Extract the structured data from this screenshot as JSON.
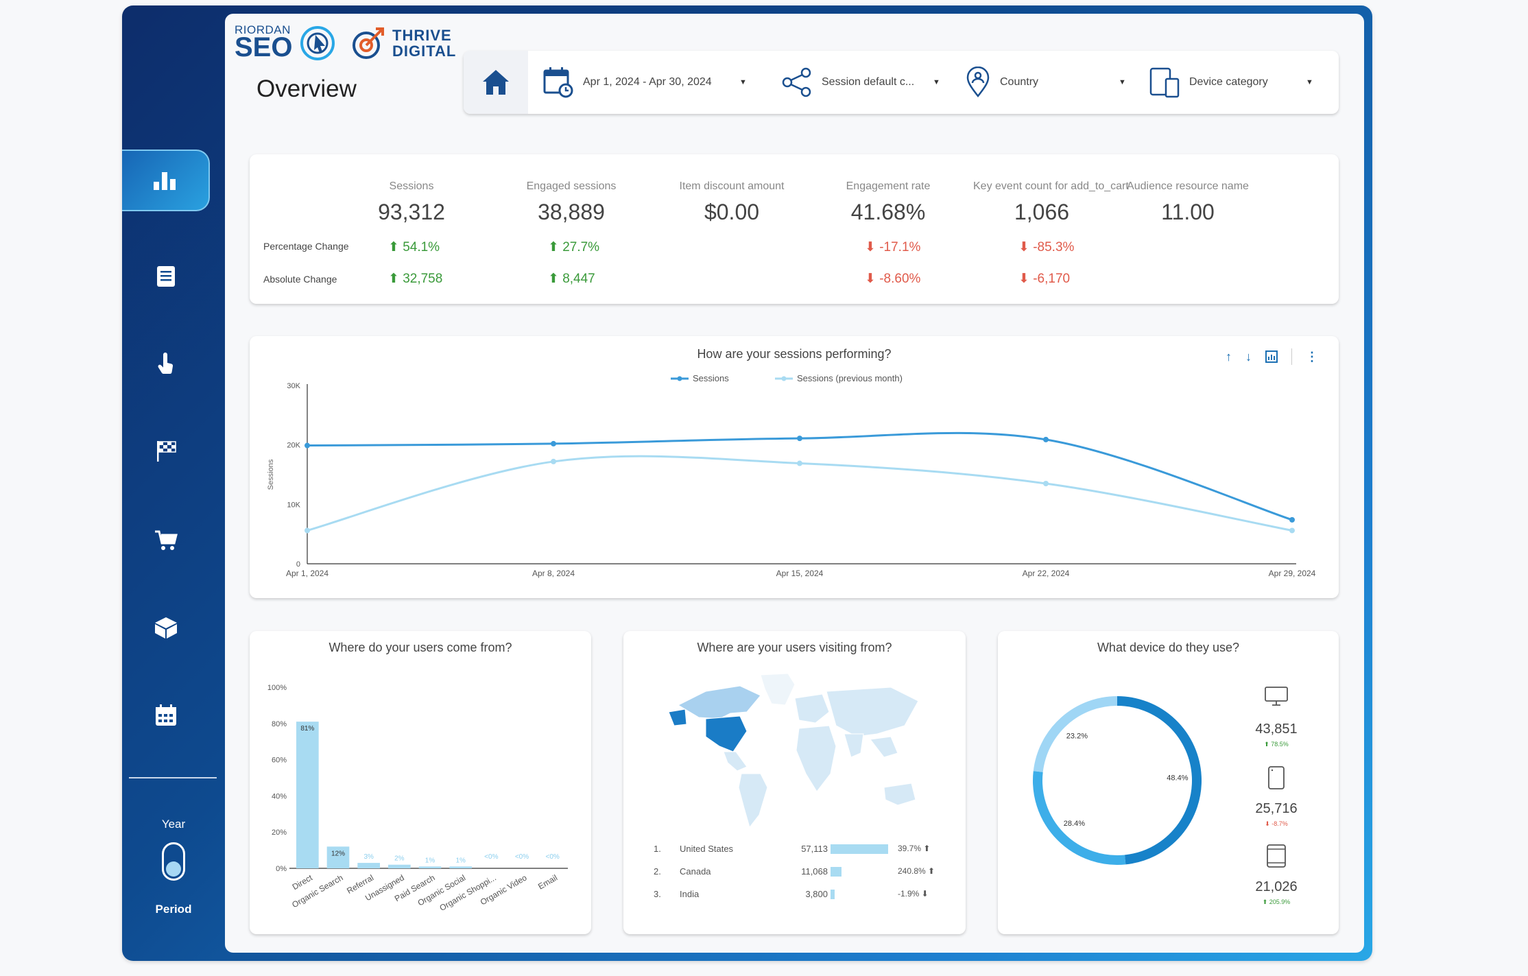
{
  "brand": {
    "logo1_top": "RIORDAN",
    "logo1_main": "SEO",
    "logo2_line1": "THRIVE",
    "logo2_line2": "DIGITAL"
  },
  "page_title": "Overview",
  "sidebar": {
    "items": [
      {
        "name": "bar-chart-icon",
        "active": true
      },
      {
        "name": "document-icon",
        "active": false
      },
      {
        "name": "pointer-hand-icon",
        "active": false
      },
      {
        "name": "checkered-flag-icon",
        "active": false
      },
      {
        "name": "cart-icon",
        "active": false
      },
      {
        "name": "box-icon",
        "active": false
      },
      {
        "name": "calendar-icon",
        "active": false
      }
    ],
    "toggle": {
      "top_label": "Year",
      "bottom_label": "Period"
    }
  },
  "filters": {
    "date_range": "Apr 1, 2024 - Apr 30, 2024",
    "channel": "Session default c...",
    "country": "Country",
    "device": "Device category"
  },
  "kpis": {
    "row_labels": {
      "pct": "Percentage Change",
      "abs": "Absolute Change"
    },
    "items": [
      {
        "label": "Sessions",
        "value": "93,312",
        "pct": "54.1%",
        "abs": "32,758",
        "dir": "up"
      },
      {
        "label": "Engaged sessions",
        "value": "38,889",
        "pct": "27.7%",
        "abs": "8,447",
        "dir": "up"
      },
      {
        "label": "Item discount amount",
        "value": "$0.00",
        "pct": "",
        "abs": "",
        "dir": ""
      },
      {
        "label": "Engagement rate",
        "value": "41.68%",
        "pct": "-17.1%",
        "abs": "-8.60%",
        "dir": "down"
      },
      {
        "label": "Key event count for add_to_cart",
        "value": "1,066",
        "pct": "-85.3%",
        "abs": "-6,170",
        "dir": "down"
      },
      {
        "label": "Audience resource name",
        "value": "11.00",
        "pct": "",
        "abs": "",
        "dir": ""
      }
    ]
  },
  "sessions_chart": {
    "title": "How are your sessions performing?",
    "legend": [
      "Sessions",
      "Sessions (previous month)"
    ]
  },
  "sources_chart": {
    "title": "Where do your users come from?"
  },
  "geo": {
    "title": "Where are your users visiting from?",
    "rows": [
      {
        "rank": "1.",
        "country": "United States",
        "value": "57,113",
        "bar": 1.0,
        "change": "39.7%",
        "dir": "up"
      },
      {
        "rank": "2.",
        "country": "Canada",
        "value": "11,068",
        "bar": 0.194,
        "change": "240.8%",
        "dir": "up"
      },
      {
        "rank": "3.",
        "country": "India",
        "value": "3,800",
        "bar": 0.067,
        "change": "-1.9%",
        "dir": "down"
      }
    ]
  },
  "devices": {
    "title": "What device do they use?",
    "items": [
      {
        "icon": "desktop-icon",
        "value": "43,851",
        "change": "78.5%",
        "dir": "up"
      },
      {
        "icon": "mobile-icon",
        "value": "25,716",
        "change": "-8.7%",
        "dir": "down"
      },
      {
        "icon": "tablet-icon",
        "value": "21,026",
        "change": "205.9%",
        "dir": "up"
      }
    ]
  },
  "chart_data": [
    {
      "type": "line",
      "title": "How are your sessions performing?",
      "ylabel": "Sessions",
      "x": [
        "Apr 1, 2024",
        "Apr 8, 2024",
        "Apr 15, 2024",
        "Apr 22, 2024",
        "Apr 29, 2024"
      ],
      "y_ticks": [
        "0",
        "10K",
        "20K",
        "30K"
      ],
      "ylim": [
        0,
        30000
      ],
      "series": [
        {
          "name": "Sessions",
          "color": "#3a9ad9",
          "values": [
            19900,
            20200,
            21100,
            20900,
            7400
          ]
        },
        {
          "name": "Sessions (previous month)",
          "color": "#a8dbf2",
          "values": [
            5600,
            17200,
            16900,
            13500,
            5600
          ]
        }
      ],
      "legend": "top-center"
    },
    {
      "type": "bar",
      "title": "Where do your users come from?",
      "categories": [
        "Direct",
        "Organic Search",
        "Referral",
        "Unassigned",
        "Paid Search",
        "Organic Social",
        "Organic Shoppi...",
        "Organic Video",
        "Email"
      ],
      "values": [
        81,
        12,
        3,
        2,
        1,
        1,
        0,
        0,
        0
      ],
      "labels": [
        "81%",
        "12%",
        "3%",
        "2%",
        "1%",
        "1%",
        "<0%",
        "<0%",
        "<0%"
      ],
      "y_ticks": [
        "0%",
        "20%",
        "40%",
        "60%",
        "80%",
        "100%"
      ],
      "ylim": [
        0,
        100
      ],
      "color": "#a8dbf2"
    },
    {
      "type": "pie",
      "title": "What device do they use?",
      "categories": [
        "desktop",
        "mobile",
        "tablet"
      ],
      "values": [
        48.4,
        28.4,
        23.2
      ],
      "labels": [
        "48.4%",
        "28.4%",
        "23.2%"
      ],
      "colors": [
        "#1782c9",
        "#3daee9",
        "#9fd6f5"
      ]
    }
  ]
}
